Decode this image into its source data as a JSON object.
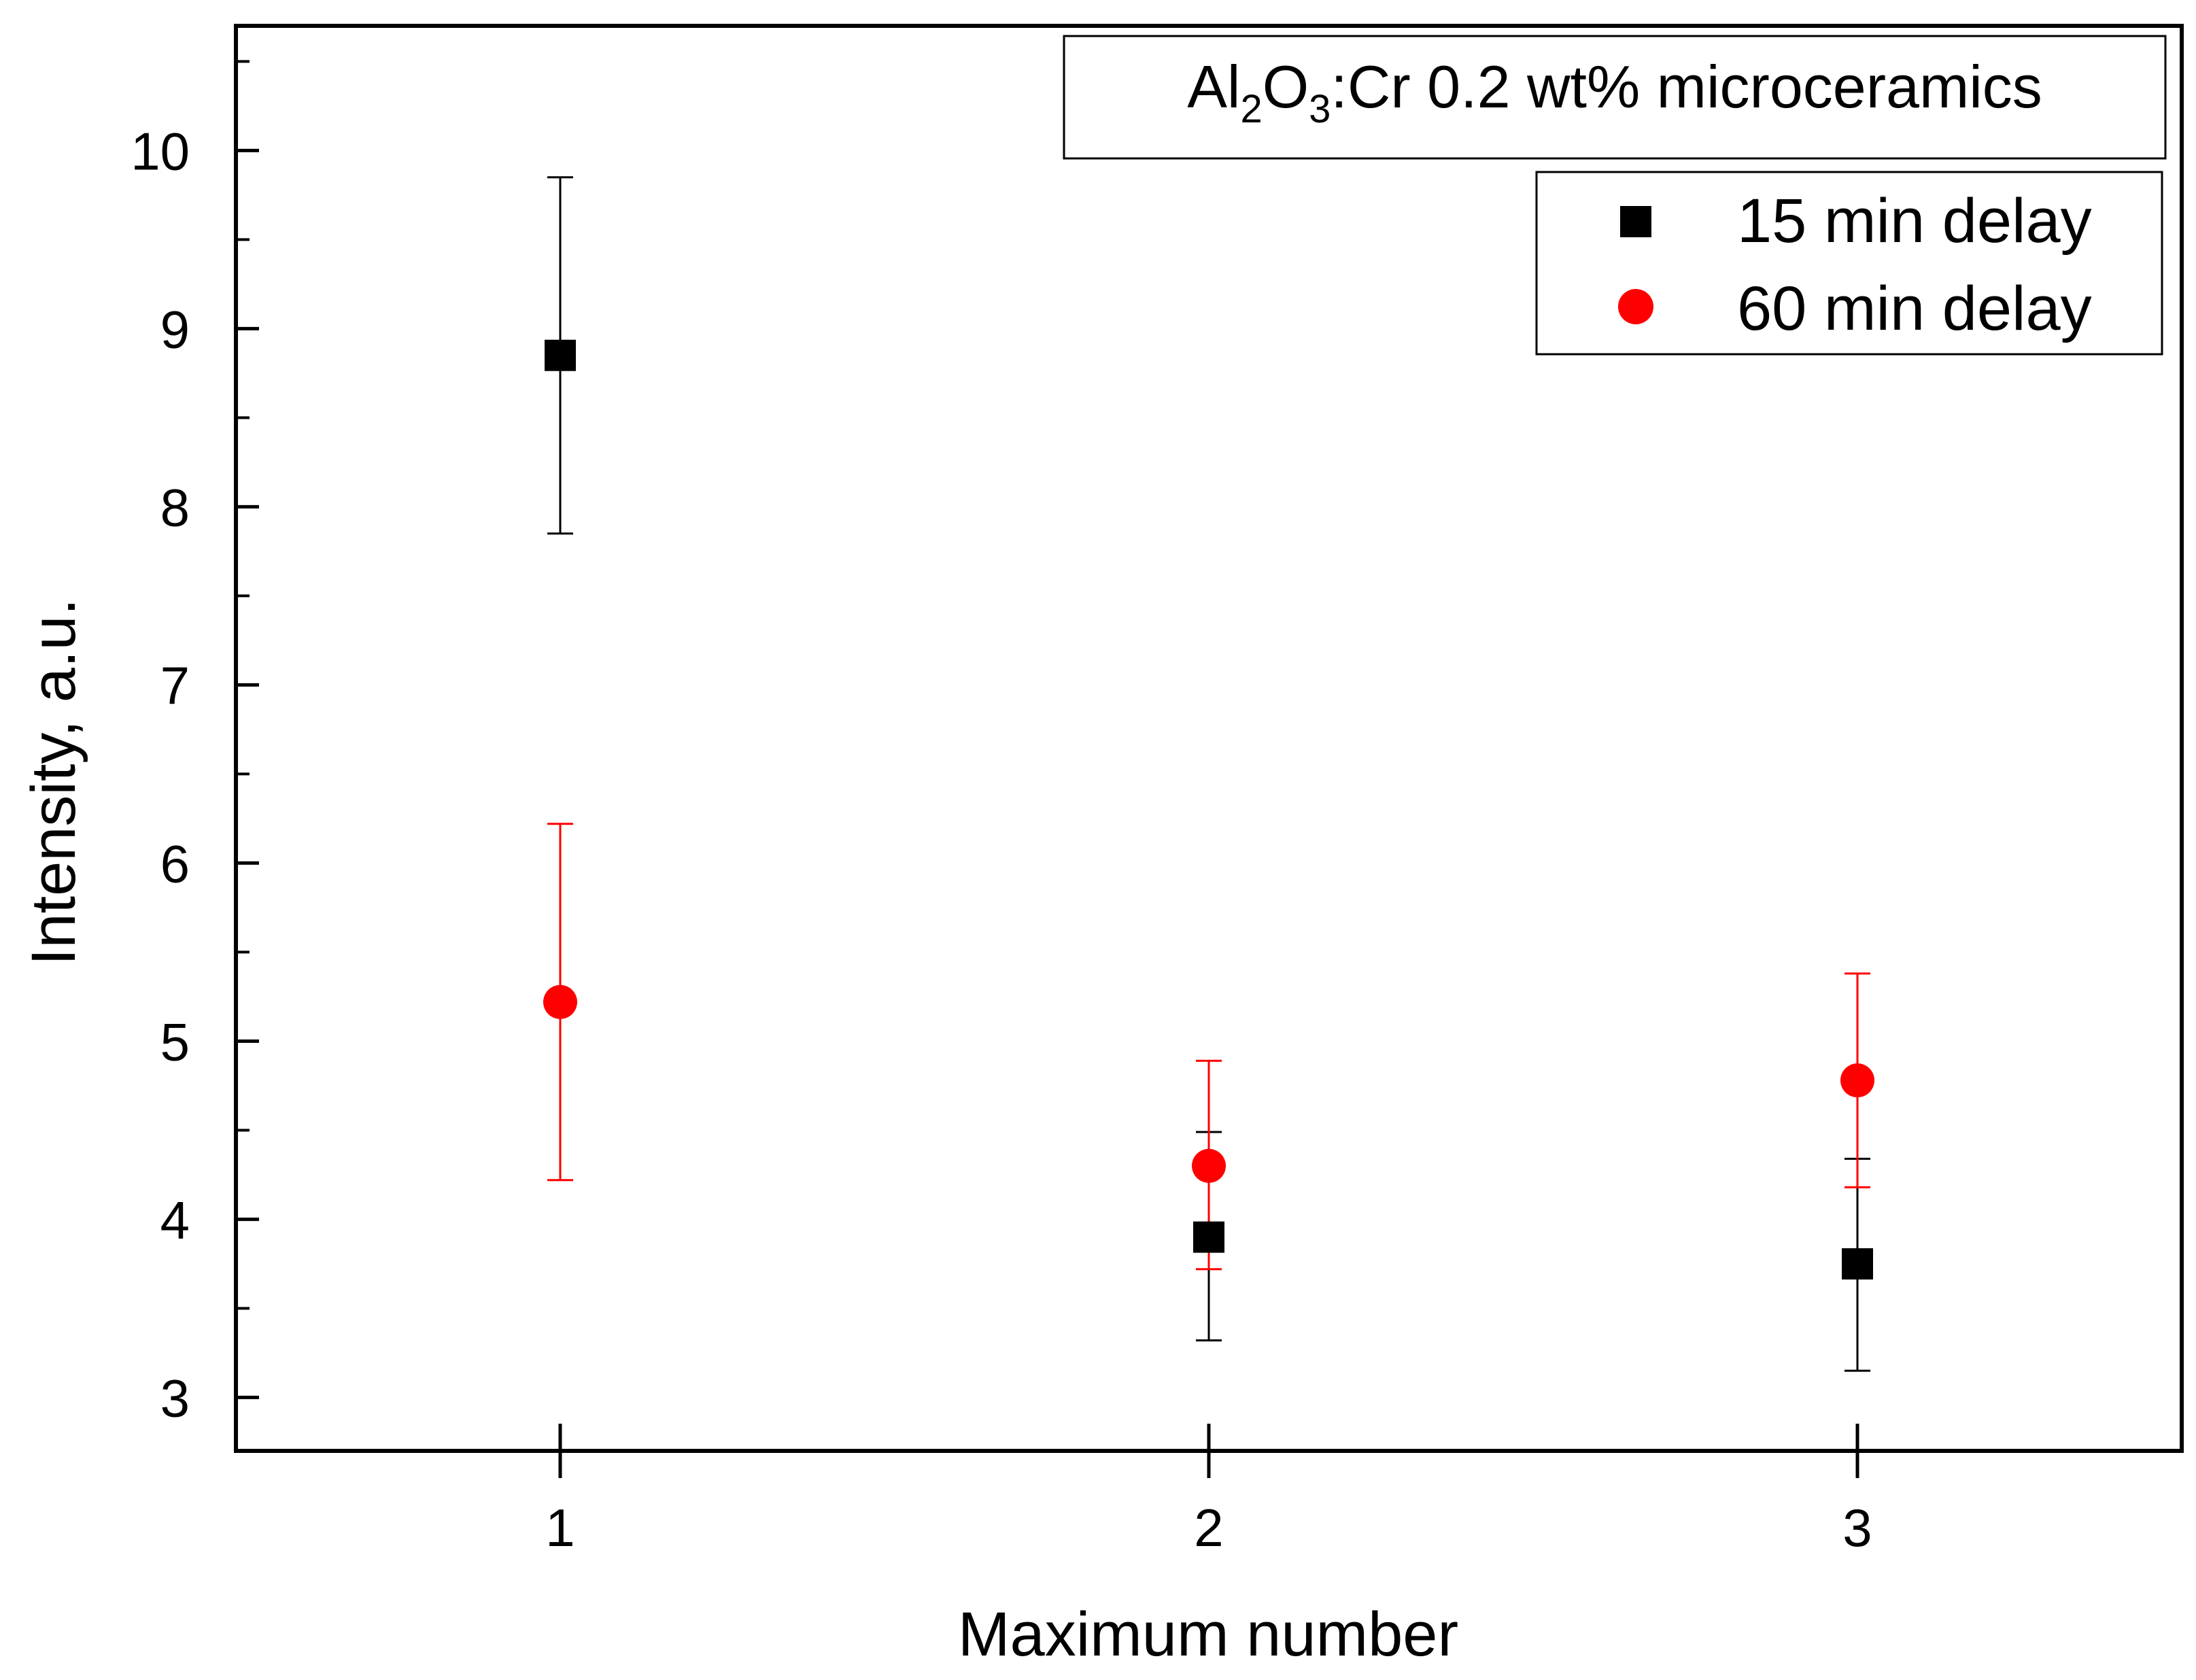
{
  "chart_data": {
    "type": "scatter",
    "title": "Al2O3:Cr 0.2 wt% microceramics",
    "title_parts": {
      "base1": "Al",
      "sub1": "2",
      "base2": "O",
      "sub2": "3",
      "rest": ":Cr 0.2 wt% microceramics"
    },
    "xlabel": "Maximum number",
    "ylabel": "Intensity, a.u.",
    "xlim": [
      0.5,
      3.5
    ],
    "ylim": [
      2.7,
      10.7
    ],
    "x_ticks": [
      1,
      2,
      3
    ],
    "x_tick_labels": [
      "1",
      "2",
      "3"
    ],
    "y_ticks": [
      3,
      4,
      5,
      6,
      7,
      8,
      9,
      10
    ],
    "y_tick_labels": [
      "3",
      "4",
      "5",
      "6",
      "7",
      "8",
      "9",
      "10"
    ],
    "grid": false,
    "legend_position": "top-right",
    "series": [
      {
        "name": "15 min delay",
        "marker": "square",
        "color": "#000000",
        "x": [
          1,
          2,
          3
        ],
        "y": [
          8.85,
          3.9,
          3.75
        ],
        "err_low": [
          7.85,
          3.32,
          3.15
        ],
        "err_high": [
          9.85,
          4.49,
          4.34
        ]
      },
      {
        "name": "60 min delay",
        "marker": "circle",
        "color": "#ff0000",
        "x": [
          1,
          2,
          3
        ],
        "y": [
          5.22,
          4.3,
          4.78
        ],
        "err_low": [
          4.22,
          3.72,
          4.18
        ],
        "err_high": [
          6.22,
          4.89,
          5.38
        ]
      }
    ]
  }
}
